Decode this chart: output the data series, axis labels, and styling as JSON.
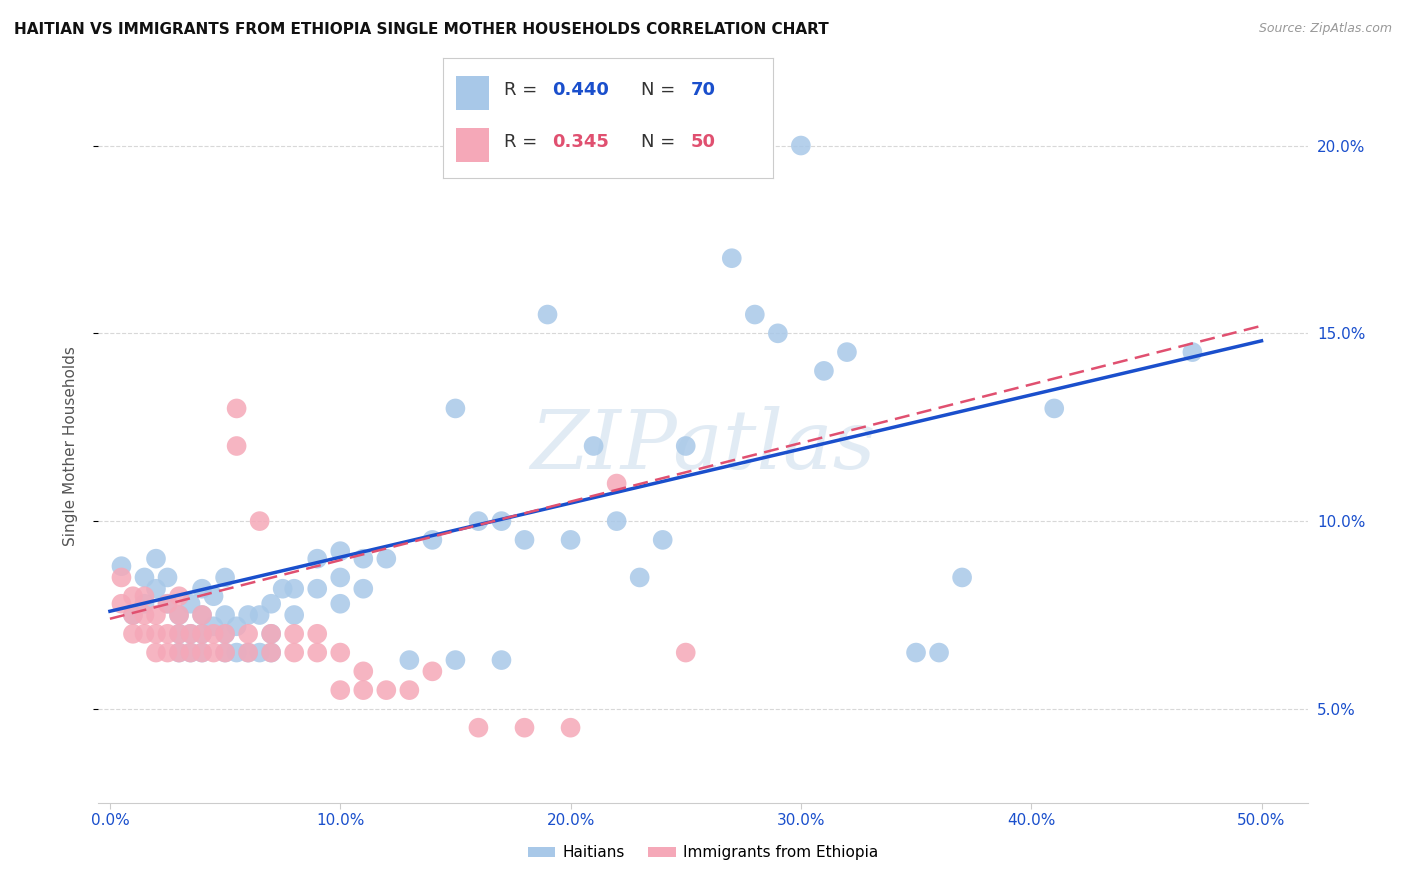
{
  "title": "HAITIAN VS IMMIGRANTS FROM ETHIOPIA SINGLE MOTHER HOUSEHOLDS CORRELATION CHART",
  "source": "Source: ZipAtlas.com",
  "ylabel": "Single Mother Households",
  "xlabel_vals": [
    0.0,
    0.1,
    0.2,
    0.3,
    0.4,
    0.5
  ],
  "xlabel_ticks": [
    "0.0%",
    "10.0%",
    "20.0%",
    "30.0%",
    "40.0%",
    "50.0%"
  ],
  "ylabel_vals": [
    0.05,
    0.1,
    0.15,
    0.2
  ],
  "ylabel_ticks": [
    "5.0%",
    "10.0%",
    "15.0%",
    "20.0%"
  ],
  "ylim": [
    0.025,
    0.215
  ],
  "xlim": [
    -0.005,
    0.52
  ],
  "blue_color": "#a8c8e8",
  "pink_color": "#f5a8b8",
  "blue_line_color": "#1a4fcc",
  "pink_line_color": "#e05070",
  "watermark": "ZIPatlas",
  "legend_r_blue": "0.440",
  "legend_n_blue": "70",
  "legend_r_pink": "0.345",
  "legend_n_pink": "50",
  "blue_scatter_x": [
    0.005,
    0.01,
    0.015,
    0.015,
    0.02,
    0.02,
    0.025,
    0.025,
    0.03,
    0.03,
    0.03,
    0.035,
    0.035,
    0.035,
    0.04,
    0.04,
    0.04,
    0.04,
    0.045,
    0.045,
    0.05,
    0.05,
    0.05,
    0.05,
    0.055,
    0.055,
    0.06,
    0.06,
    0.065,
    0.065,
    0.07,
    0.07,
    0.07,
    0.075,
    0.08,
    0.08,
    0.09,
    0.09,
    0.1,
    0.1,
    0.1,
    0.11,
    0.11,
    0.12,
    0.13,
    0.14,
    0.15,
    0.15,
    0.16,
    0.17,
    0.17,
    0.18,
    0.19,
    0.2,
    0.21,
    0.22,
    0.23,
    0.24,
    0.25,
    0.27,
    0.28,
    0.29,
    0.3,
    0.31,
    0.32,
    0.35,
    0.36,
    0.37,
    0.41,
    0.47
  ],
  "blue_scatter_y": [
    0.088,
    0.075,
    0.078,
    0.085,
    0.082,
    0.09,
    0.078,
    0.085,
    0.065,
    0.07,
    0.075,
    0.065,
    0.07,
    0.078,
    0.065,
    0.07,
    0.075,
    0.082,
    0.072,
    0.08,
    0.065,
    0.07,
    0.075,
    0.085,
    0.065,
    0.072,
    0.065,
    0.075,
    0.065,
    0.075,
    0.065,
    0.07,
    0.078,
    0.082,
    0.075,
    0.082,
    0.082,
    0.09,
    0.078,
    0.085,
    0.092,
    0.082,
    0.09,
    0.09,
    0.063,
    0.095,
    0.063,
    0.13,
    0.1,
    0.063,
    0.1,
    0.095,
    0.155,
    0.095,
    0.12,
    0.1,
    0.085,
    0.095,
    0.12,
    0.17,
    0.155,
    0.15,
    0.2,
    0.14,
    0.145,
    0.065,
    0.065,
    0.085,
    0.13,
    0.145
  ],
  "pink_scatter_x": [
    0.005,
    0.005,
    0.01,
    0.01,
    0.01,
    0.015,
    0.015,
    0.015,
    0.02,
    0.02,
    0.02,
    0.025,
    0.025,
    0.025,
    0.03,
    0.03,
    0.03,
    0.03,
    0.035,
    0.035,
    0.04,
    0.04,
    0.04,
    0.045,
    0.045,
    0.05,
    0.05,
    0.055,
    0.055,
    0.06,
    0.06,
    0.065,
    0.07,
    0.07,
    0.08,
    0.08,
    0.09,
    0.09,
    0.1,
    0.1,
    0.11,
    0.11,
    0.12,
    0.13,
    0.14,
    0.16,
    0.18,
    0.2,
    0.22,
    0.25
  ],
  "pink_scatter_y": [
    0.078,
    0.085,
    0.07,
    0.075,
    0.08,
    0.07,
    0.075,
    0.08,
    0.065,
    0.07,
    0.075,
    0.065,
    0.07,
    0.078,
    0.065,
    0.07,
    0.075,
    0.08,
    0.065,
    0.07,
    0.065,
    0.07,
    0.075,
    0.065,
    0.07,
    0.065,
    0.07,
    0.12,
    0.13,
    0.065,
    0.07,
    0.1,
    0.065,
    0.07,
    0.065,
    0.07,
    0.065,
    0.07,
    0.055,
    0.065,
    0.055,
    0.06,
    0.055,
    0.055,
    0.06,
    0.045,
    0.045,
    0.045,
    0.11,
    0.065
  ],
  "blue_line_x": [
    0.0,
    0.5
  ],
  "blue_line_y": [
    0.076,
    0.148
  ],
  "pink_line_x": [
    0.0,
    0.5
  ],
  "pink_line_y": [
    0.074,
    0.152
  ],
  "grid_color": "#d8d8d8",
  "background_color": "#ffffff",
  "title_fontsize": 11,
  "tick_fontsize": 11,
  "ylabel_fontsize": 11
}
